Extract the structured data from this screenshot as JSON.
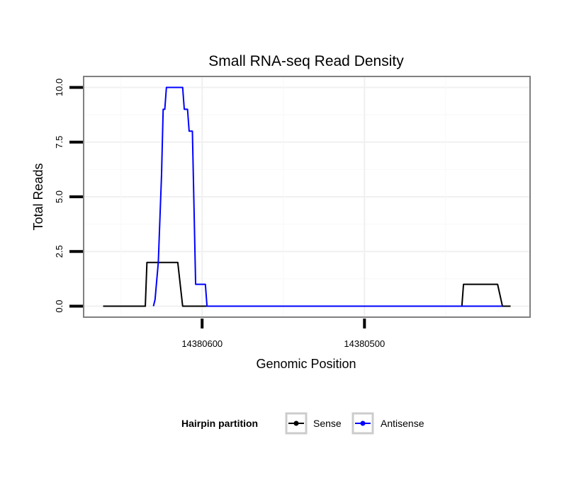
{
  "chart_data": {
    "type": "line",
    "title": "Small RNA-seq Read Density",
    "xlabel": "Genomic Position",
    "ylabel": "Total Reads",
    "x_axis_reversed": true,
    "xlim": [
      14380673,
      14380398
    ],
    "ylim": [
      -0.5,
      10.5
    ],
    "x_ticks": [
      14380600,
      14380500
    ],
    "x_tick_labels": [
      "14380600",
      "14380500"
    ],
    "y_ticks": [
      0,
      2.5,
      5,
      7.5,
      10
    ],
    "y_tick_labels": [
      "0.0",
      "2.5",
      "5.0",
      "7.5",
      "10.0"
    ],
    "grid": true,
    "legend": {
      "title": "Hairpin partition",
      "position": "bottom",
      "entries": [
        "Sense",
        "Antisense"
      ]
    },
    "series": [
      {
        "name": "Sense",
        "color": "#000000",
        "points": [
          [
            14380661,
            0
          ],
          [
            14380635,
            0
          ],
          [
            14380634,
            2
          ],
          [
            14380615,
            2
          ],
          [
            14380612,
            0
          ],
          [
            14380575,
            0
          ],
          [
            14380440,
            0
          ],
          [
            14380439,
            1
          ],
          [
            14380418,
            1
          ],
          [
            14380415,
            0
          ],
          [
            14380410,
            0
          ]
        ]
      },
      {
        "name": "Antisense",
        "color": "#0000ff",
        "points": [
          [
            14380630,
            0
          ],
          [
            14380629,
            0.3
          ],
          [
            14380627,
            2
          ],
          [
            14380625,
            6
          ],
          [
            14380624,
            9
          ],
          [
            14380623,
            9
          ],
          [
            14380622,
            10
          ],
          [
            14380612,
            10
          ],
          [
            14380611,
            9
          ],
          [
            14380609,
            9
          ],
          [
            14380608,
            8
          ],
          [
            14380606,
            8
          ],
          [
            14380604,
            1
          ],
          [
            14380598,
            1
          ],
          [
            14380597,
            0
          ],
          [
            14380530,
            0
          ],
          [
            14380440,
            0
          ],
          [
            14380415,
            0
          ]
        ]
      }
    ]
  }
}
